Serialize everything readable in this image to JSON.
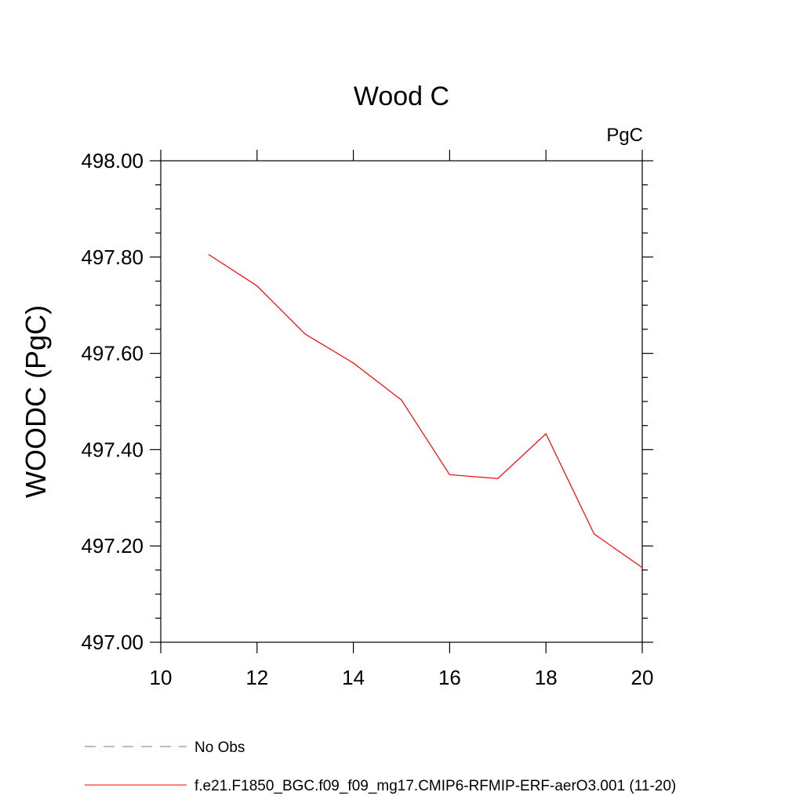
{
  "chart_data": {
    "type": "line",
    "title": "Wood C",
    "units": "PgC",
    "ylabel": "WOODC  (PgC)",
    "xlabel": "",
    "xlim": [
      10,
      20
    ],
    "ylim": [
      497.0,
      498.0
    ],
    "x_ticks": [
      10,
      12,
      14,
      16,
      18,
      20
    ],
    "x_tick_labels": [
      "10",
      "12",
      "14",
      "16",
      "18",
      "20"
    ],
    "y_ticks": [
      497.0,
      497.2,
      497.4,
      497.6,
      497.8,
      498.0
    ],
    "y_tick_labels": [
      "497.00",
      "497.20",
      "497.40",
      "497.60",
      "497.80",
      "498.00"
    ],
    "grid": false,
    "legend_position": "bottom",
    "series": [
      {
        "name": "f.e21.F1850_BGC.f09_f09_mg17.CMIP6-RFMIP-ERF-aerO3.001 (11-20)",
        "color": "#ff0000",
        "style": "solid",
        "x": [
          11,
          12,
          13,
          14,
          15,
          16,
          17,
          18,
          19,
          20
        ],
        "y": [
          497.805,
          497.74,
          497.64,
          497.58,
          497.503,
          497.348,
          497.34,
          497.433,
          497.225,
          497.155
        ]
      }
    ],
    "legend": [
      {
        "label": "No Obs",
        "color": "#7b6fb0",
        "style": "dashed"
      },
      {
        "label": "f.e21.F1850_BGC.f09_f09_mg17.CMIP6-RFMIP-ERF-aerO3.001 (11-20)",
        "color": "#ff0000",
        "style": "solid"
      }
    ]
  }
}
